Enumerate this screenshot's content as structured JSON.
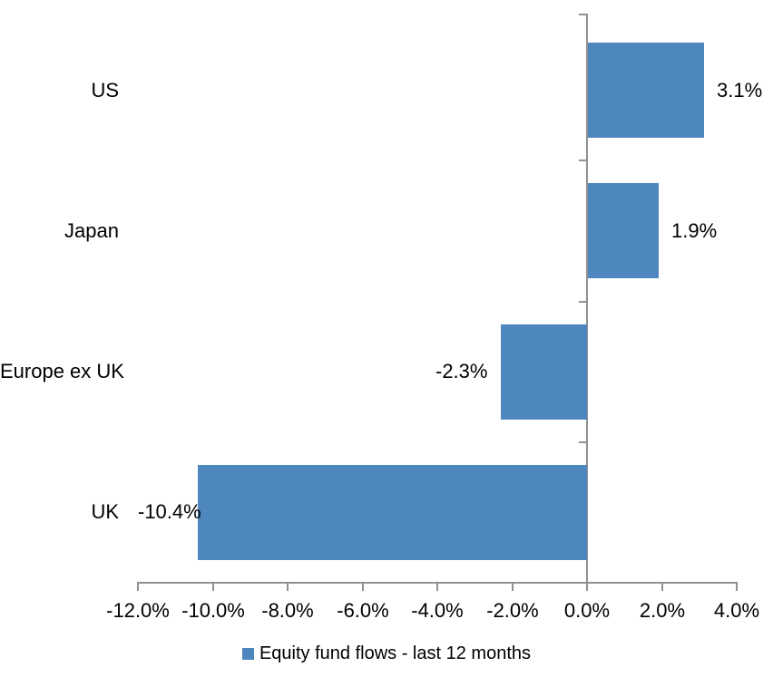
{
  "chart_data": {
    "type": "bar",
    "orientation": "horizontal",
    "title": "",
    "categories": [
      "US",
      "Japan",
      "Europe ex UK",
      "UK"
    ],
    "series": [
      {
        "name": "Equity fund flows - last 12 months",
        "values": [
          3.1,
          1.9,
          -2.3,
          -10.4
        ],
        "labels": [
          "3.1%",
          "1.9%",
          "-2.3%",
          "-10.4%"
        ]
      }
    ],
    "x_axis": {
      "range": [
        -12,
        4
      ],
      "tick_values": [
        -12,
        -10,
        -8,
        -6,
        -4,
        -2,
        0,
        2,
        4
      ],
      "tick_labels": [
        "-12.0%",
        "-10.0%",
        "-8.0%",
        "-6.0%",
        "-4.0%",
        "-2.0%",
        "0.0%",
        "2.0%",
        "4.0%"
      ],
      "format": "percent"
    },
    "grid": false,
    "legend": {
      "position": "bottom",
      "label": "Equity fund flows - last 12 months"
    },
    "colors": {
      "bar": "#4E86BE",
      "axis": "#909090",
      "text": "#000000",
      "background": "#FFFFFF"
    }
  }
}
